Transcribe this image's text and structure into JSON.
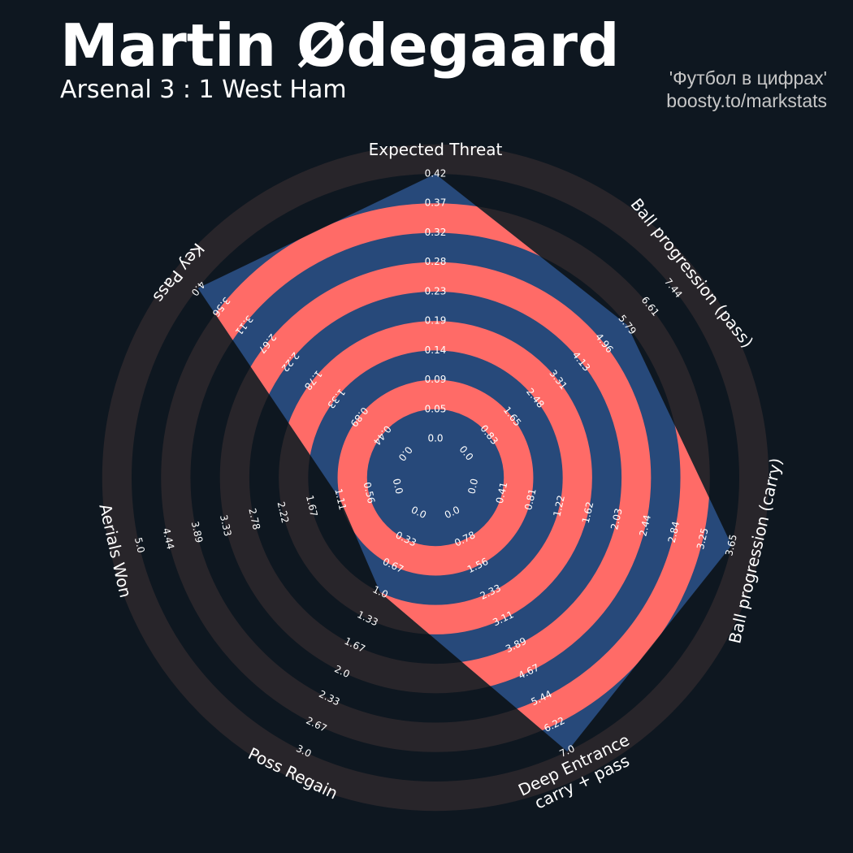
{
  "header": {
    "title": "Martin Ødegaard",
    "subtitle": "Arsenal 3 : 1 West Ham",
    "credit_line1": "'Футбол в цифрах'",
    "credit_line2": "boosty.to/markstats"
  },
  "colors": {
    "background": "#0e1720",
    "ring_outer": "#28252a",
    "ring_inner": "#ff6b67",
    "polygon": "#27497a",
    "text": "#ffffff",
    "credit": "#c7c7c7"
  },
  "chart_data": {
    "type": "radar",
    "title": "Martin Ødegaard",
    "subtitle": "Arsenal 3 : 1 West Ham",
    "params": [
      {
        "lines": [
          "Expected Threat"
        ],
        "min": 0.0,
        "max": 0.42,
        "ticks": [
          "0.0",
          "0.05",
          "0.09",
          "0.14",
          "0.19",
          "0.23",
          "0.28",
          "0.32",
          "0.37",
          "0.42"
        ],
        "value": 0.42
      },
      {
        "lines": [
          "Ball progression (pass)"
        ],
        "min": 0.0,
        "max": 7.44,
        "ticks": [
          "0.0",
          "0.83",
          "1.65",
          "2.48",
          "3.31",
          "4.13",
          "4.96",
          "5.79",
          "6.61",
          "7.44"
        ],
        "value": 5.79
      },
      {
        "lines": [
          "Ball progression (carry)"
        ],
        "min": 0.0,
        "max": 3.65,
        "ticks": [
          "0.0",
          "0.41",
          "0.81",
          "1.22",
          "1.62",
          "2.03",
          "2.44",
          "2.84",
          "3.25",
          "3.65"
        ],
        "value": 3.65
      },
      {
        "lines": [
          "Deep Entrance",
          "carry + pass"
        ],
        "min": 0.0,
        "max": 7.0,
        "ticks": [
          "0.0",
          "0.78",
          "1.56",
          "2.33",
          "3.11",
          "3.89",
          "4.67",
          "5.44",
          "6.22",
          "7.0"
        ],
        "value": 7.0
      },
      {
        "lines": [
          "Poss Regain"
        ],
        "min": 0.0,
        "max": 3.0,
        "ticks": [
          "0.0",
          "0.33",
          "0.67",
          "1.0",
          "1.33",
          "1.67",
          "2.0",
          "2.33",
          "2.67",
          "3.0"
        ],
        "value": 1.0
      },
      {
        "lines": [
          "Aerials Won"
        ],
        "min": 0.0,
        "max": 5.0,
        "ticks": [
          "0.0",
          "0.56",
          "1.11",
          "1.67",
          "2.22",
          "2.78",
          "3.33",
          "3.89",
          "4.44",
          "5.0"
        ],
        "value": 1.11
      },
      {
        "lines": [
          "Key Pass"
        ],
        "min": 0.0,
        "max": 4.0,
        "ticks": [
          "0.0",
          "0.44",
          "0.89",
          "1.33",
          "1.78",
          "2.22",
          "2.67",
          "3.11",
          "3.56",
          "4.0"
        ],
        "value": 4.0
      }
    ]
  }
}
